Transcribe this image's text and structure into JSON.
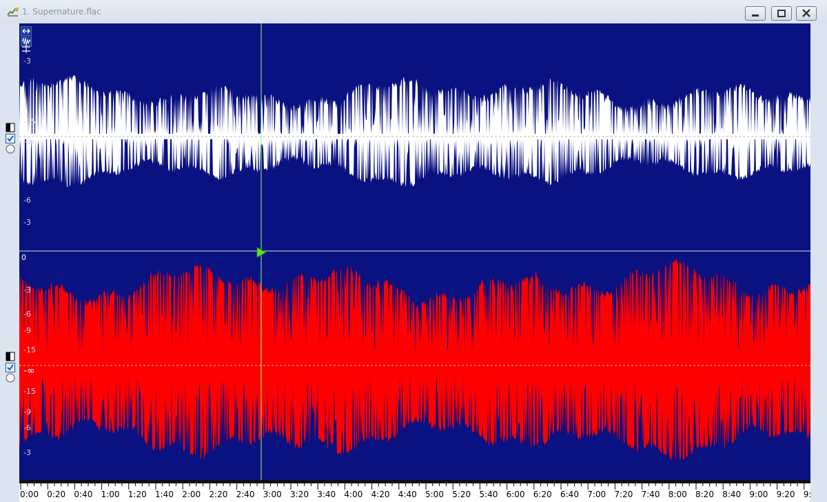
{
  "window": {
    "title": "1. Supernature.flac",
    "buttons": {
      "minimize": "minimize-icon",
      "maximize": "maximize-icon",
      "close": "close-icon"
    }
  },
  "colors": {
    "background": "#0a1180",
    "waveform_outer": "#0a1180",
    "waveform_gap_top": "#ffffff",
    "waveform_bottom": "#ff0000",
    "cursor": "#9dff7a",
    "timeline_bg": "#ffffff"
  },
  "channels": [
    {
      "name": "top",
      "db_labels": [
        "-3",
        "-15",
        "-∞",
        "-6",
        "-3"
      ]
    },
    {
      "name": "bottom",
      "db_labels": [
        "0",
        "-3",
        "-6",
        "-9",
        "-15",
        "-∞",
        "-15",
        "-9",
        "-6",
        "-3"
      ]
    }
  ],
  "cursor": {
    "time": "2:58"
  },
  "timeline": {
    "labels": [
      "0:00",
      "0:20",
      "0:40",
      "1:00",
      "1:20",
      "1:40",
      "2:00",
      "2:20",
      "2:40",
      "3:00",
      "3:20",
      "3:40",
      "4:00",
      "4:20",
      "4:40",
      "5:00",
      "5:20",
      "5:40",
      "6:00",
      "6:20",
      "6:40",
      "7:00",
      "7:20",
      "7:40",
      "8:00",
      "8:20",
      "8:40",
      "9:00",
      "9:20",
      "9:"
    ]
  },
  "toolbar_icons": [
    "horizontal-zoom-icon",
    "waveform-view-icon",
    "vertical-zoom-icon"
  ],
  "channel_controls": [
    "channel-toggle-icon",
    "channel-enable-checkbox",
    "channel-solo-radio"
  ]
}
